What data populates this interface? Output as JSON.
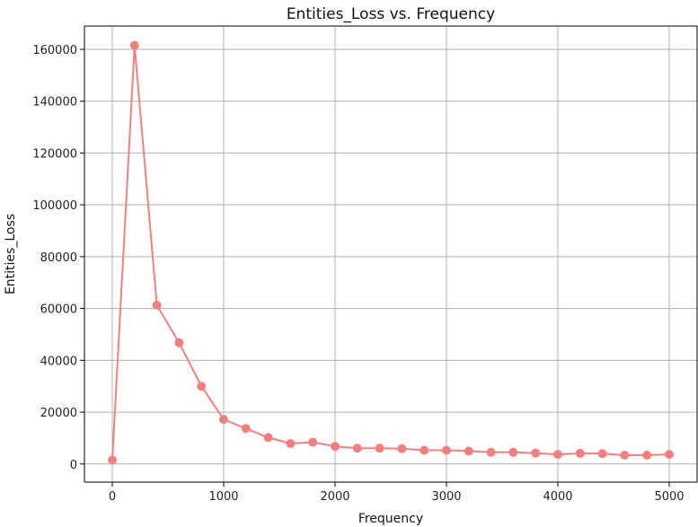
{
  "chart_data": {
    "type": "line",
    "title": "Entities_Loss vs. Frequency",
    "xlabel": "Frequency",
    "ylabel": "Entities_Loss",
    "xlim": [
      -250,
      5250
    ],
    "ylim": [
      -7000,
      169000
    ],
    "xticks": [
      0,
      1000,
      2000,
      3000,
      4000,
      5000
    ],
    "yticks": [
      0,
      20000,
      40000,
      60000,
      80000,
      100000,
      120000,
      140000,
      160000
    ],
    "grid": true,
    "marker": "circle",
    "colors": {
      "line": "#f08080",
      "grid": "#b0b0b0",
      "axis": "#000000"
    },
    "series": [
      {
        "x": [
          0,
          200,
          400,
          600,
          800,
          1000,
          1200,
          1400,
          1600,
          1800,
          2000,
          2200,
          2400,
          2600,
          2800,
          3000,
          3200,
          3400,
          3600,
          3800,
          4000,
          4200,
          4400,
          4600,
          4800,
          5000
        ],
        "y": [
          1500,
          161500,
          61300,
          46800,
          30000,
          17200,
          13700,
          10200,
          7900,
          8400,
          6800,
          6100,
          6100,
          5900,
          5300,
          5300,
          5000,
          4500,
          4500,
          4200,
          3700,
          4100,
          4000,
          3400,
          3400,
          3700
        ]
      }
    ]
  }
}
